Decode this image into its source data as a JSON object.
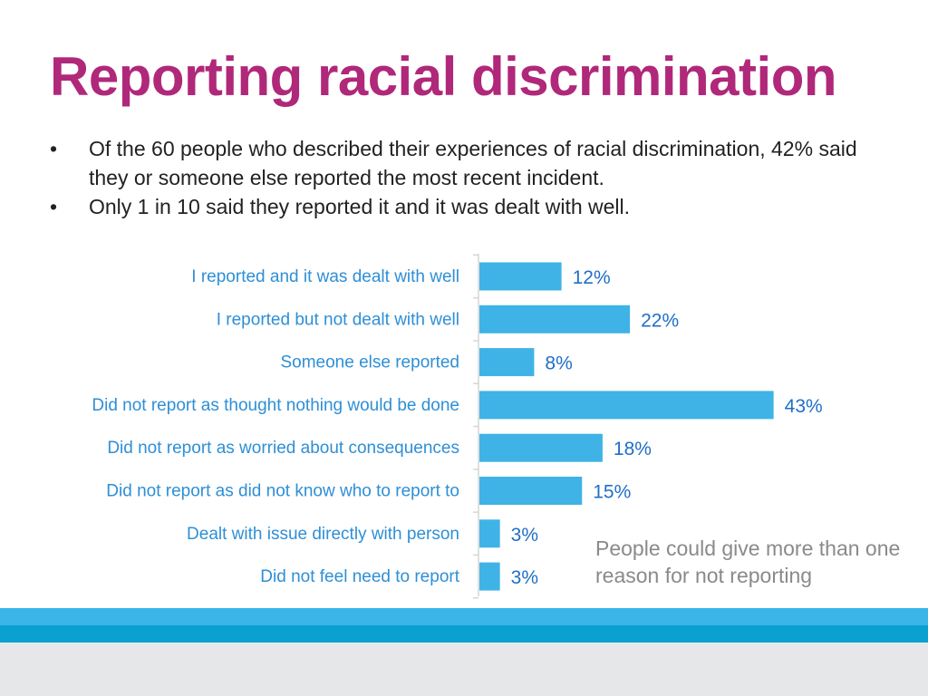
{
  "slide": {
    "title": "Reporting racial discrimination",
    "bullets": [
      "Of the 60 people who described their experiences of racial discrimination, 42% said they or someone else reported the most recent incident.",
      "Only 1 in 10 said they reported it and it was dealt with well."
    ],
    "bullet_symbol": "•",
    "note": "People could give more than one reason for not reporting"
  },
  "colors": {
    "title": "#b0287a",
    "bar": "#3fb3e6",
    "label": "#2e8fd6",
    "axis": "#d6d6d6",
    "band_light": "#3bb5e8",
    "band_dark": "#0aa0cf",
    "footer": "#e6e7e9"
  },
  "chart_data": {
    "type": "bar",
    "orientation": "horizontal",
    "categories": [
      "I reported and it was dealt with well",
      "I reported but not dealt with well",
      "Someone else reported",
      "Did not report as thought nothing would be done",
      "Did not report as worried about consequences",
      "Did not report as did not know who to report to",
      "Dealt with issue directly with person",
      "Did not feel need to report"
    ],
    "values": [
      12,
      22,
      8,
      43,
      18,
      15,
      3,
      3
    ],
    "value_labels": [
      "12%",
      "22%",
      "8%",
      "43%",
      "18%",
      "15%",
      "3%",
      "3%"
    ],
    "xlim": [
      0,
      50
    ],
    "grid": false,
    "legend": "none"
  }
}
